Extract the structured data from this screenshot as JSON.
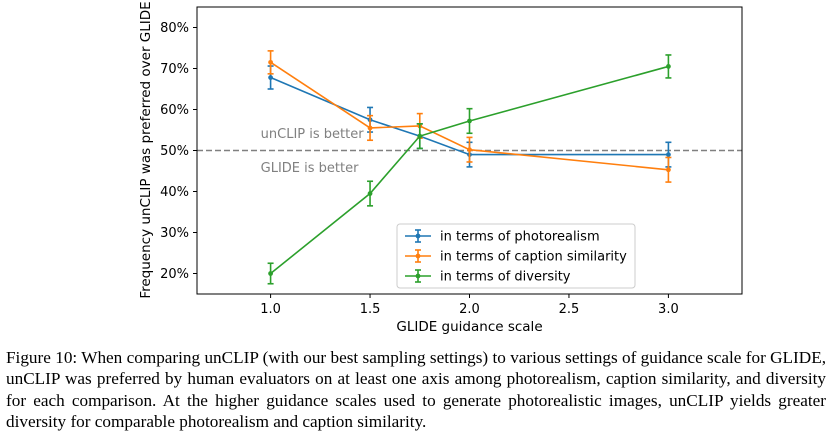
{
  "chart_data": {
    "type": "line",
    "xlabel": "GLIDE guidance scale",
    "ylabel": "Frequency unCLIP was preferred over GLIDE",
    "xlim": [
      0.63,
      3.37
    ],
    "ylim": [
      0.15,
      0.85
    ],
    "xticks": [
      1.0,
      1.5,
      2.0,
      2.5,
      3.0
    ],
    "xtick_labels": [
      "1.0",
      "1.5",
      "2.0",
      "2.5",
      "3.0"
    ],
    "yticks": [
      0.2,
      0.3,
      0.4,
      0.5,
      0.6,
      0.7,
      0.8
    ],
    "ytick_labels": [
      "20%",
      "30%",
      "40%",
      "50%",
      "60%",
      "70%",
      "80%"
    ],
    "reference_line": {
      "y": 0.5,
      "style": "dashed",
      "color": "#808080"
    },
    "annotations": [
      {
        "text": "unCLIP is better",
        "x": 0.95,
        "y": 0.542
      },
      {
        "text": "GLIDE is better",
        "x": 0.95,
        "y": 0.458
      }
    ],
    "legend_position": "lower-right",
    "grid": false,
    "series": [
      {
        "name": "in terms of photorealism",
        "color": "#1f77b4",
        "x": [
          1.0,
          1.5,
          1.75,
          2.0,
          3.0
        ],
        "y": [
          0.678,
          0.575,
          0.535,
          0.49,
          0.49
        ],
        "err": [
          0.028,
          0.03,
          0.03,
          0.03,
          0.03
        ]
      },
      {
        "name": "in terms of caption similarity",
        "color": "#ff7f0e",
        "x": [
          1.0,
          1.5,
          1.75,
          2.0,
          3.0
        ],
        "y": [
          0.715,
          0.555,
          0.56,
          0.502,
          0.453
        ],
        "err": [
          0.028,
          0.03,
          0.03,
          0.03,
          0.03
        ]
      },
      {
        "name": "in terms of diversity",
        "color": "#2ca02c",
        "x": [
          1.0,
          1.5,
          1.75,
          2.0,
          3.0
        ],
        "y": [
          0.2,
          0.395,
          0.535,
          0.572,
          0.705
        ],
        "err": [
          0.025,
          0.03,
          0.03,
          0.03,
          0.028
        ]
      }
    ]
  },
  "caption": "Figure 10: When comparing unCLIP (with our best sampling settings) to various settings of guidance scale for GLIDE, unCLIP was preferred by human evaluators on at least one axis among photorealism, caption similarity, and diversity for each comparison. At the higher guidance scales used to generate photorealistic images, unCLIP yields greater diversity for comparable photorealism and caption similarity."
}
